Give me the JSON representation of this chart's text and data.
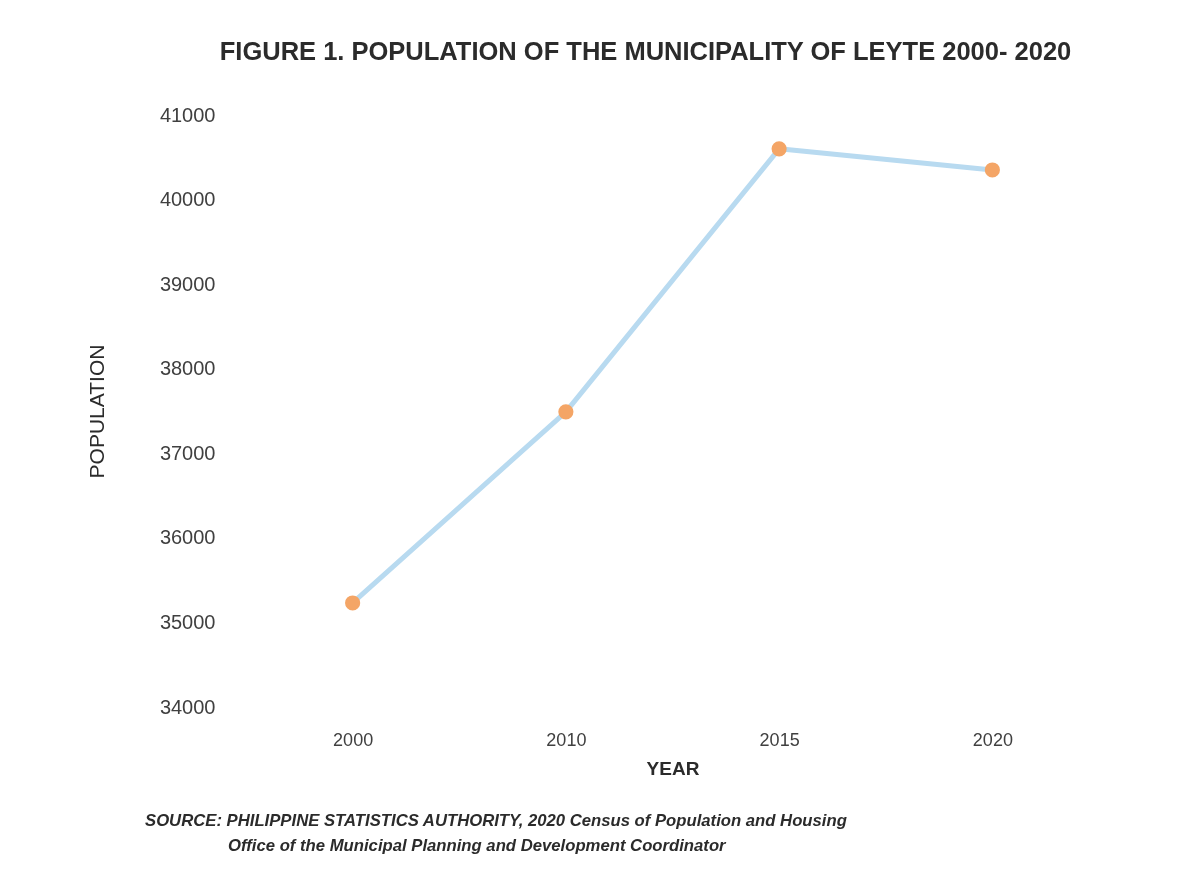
{
  "chart_data": {
    "type": "line",
    "title": "FIGURE 1. POPULATION OF THE MUNICIPALITY OF LEYTE 2000- 2020",
    "xlabel": "YEAR",
    "ylabel": "POPULATION",
    "categories": [
      "2000",
      "2010",
      "2015",
      "2020"
    ],
    "series": [
      {
        "color": "#b8daf0",
        "colors": [
          "#f4a566",
          "#f4a566",
          "#f4a566",
          "#f4a566"
        ],
        "values": [
          35230,
          37490,
          40600,
          40350
        ]
      }
    ],
    "ylim": [
      34000,
      41000
    ],
    "yticks": [
      34000,
      35000,
      36000,
      37000,
      38000,
      39000,
      40000,
      41000
    ],
    "marker": "circle",
    "annotations": [
      "SOURCE: PHILIPPINE STATISTICS AUTHORITY, 2020 Census of Population and Housing",
      "Office of the Municipal Planning and Development Coordinator"
    ]
  }
}
